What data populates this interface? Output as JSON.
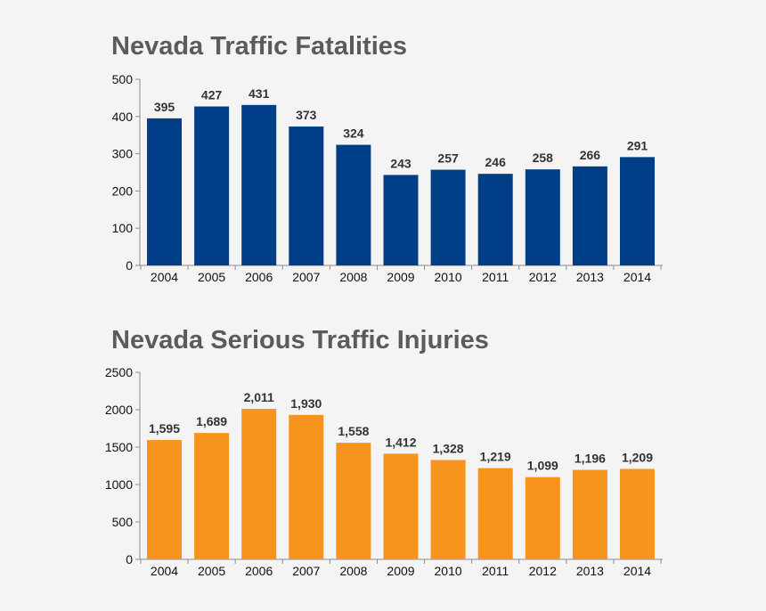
{
  "chart_data": [
    {
      "type": "bar",
      "title": "Nevada Traffic Fatalities",
      "categories": [
        "2004",
        "2005",
        "2006",
        "2007",
        "2008",
        "2009",
        "2010",
        "2011",
        "2012",
        "2013",
        "2014"
      ],
      "values": [
        395,
        427,
        431,
        373,
        324,
        243,
        257,
        246,
        258,
        266,
        291
      ],
      "value_labels": [
        "395",
        "427",
        "431",
        "373",
        "324",
        "243",
        "257",
        "246",
        "258",
        "266",
        "291"
      ],
      "yticks": [
        0,
        100,
        200,
        300,
        400,
        500
      ],
      "ylim": [
        0,
        500
      ],
      "bar_color": "#003f87",
      "xlabel": "",
      "ylabel": "",
      "grid": false
    },
    {
      "type": "bar",
      "title": "Nevada Serious Traffic Injuries",
      "categories": [
        "2004",
        "2005",
        "2006",
        "2007",
        "2008",
        "2009",
        "2010",
        "2011",
        "2012",
        "2013",
        "2014"
      ],
      "values": [
        1595,
        1689,
        2011,
        1930,
        1558,
        1412,
        1328,
        1219,
        1099,
        1196,
        1209
      ],
      "value_labels": [
        "1,595",
        "1,689",
        "2,011",
        "1,930",
        "1,558",
        "1,412",
        "1,328",
        "1,219",
        "1,099",
        "1,196",
        "1,209"
      ],
      "yticks": [
        0,
        500,
        1000,
        1500,
        2000,
        2500
      ],
      "ylim": [
        0,
        2500
      ],
      "bar_color": "#f7941d",
      "xlabel": "",
      "ylabel": "",
      "grid": false
    }
  ]
}
